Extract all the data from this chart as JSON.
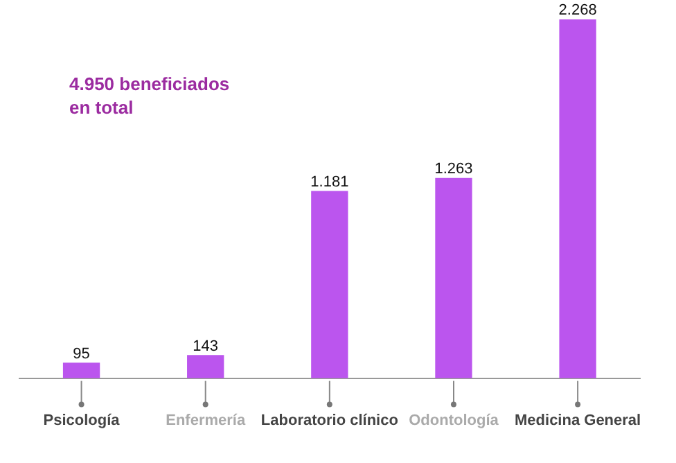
{
  "chart_data": {
    "type": "bar",
    "categories": [
      "Psicología",
      "Enfermería",
      "Laboratorio clínico",
      "Odontología",
      "Medicina General"
    ],
    "values": [
      95,
      143,
      1181,
      1263,
      2268
    ],
    "value_labels": [
      "95",
      "143",
      "1.181",
      "1.263",
      "2.268"
    ],
    "color": "#bb55ee",
    "grid": false,
    "legend": false,
    "annotations": [
      "4.950 beneficiados en total"
    ]
  }
}
